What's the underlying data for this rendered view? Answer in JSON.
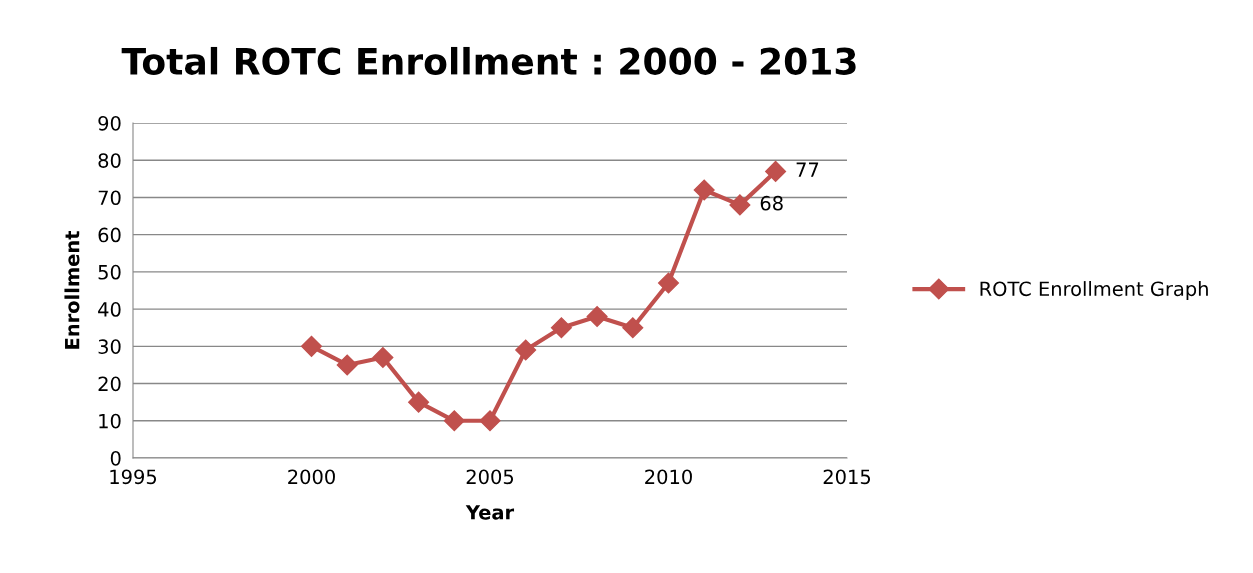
{
  "chart_data": {
    "type": "line",
    "title": "Total ROTC Enrollment : 2000 - 2013",
    "xlabel": "Year",
    "ylabel": "Enrollment",
    "x": [
      2000,
      2001,
      2002,
      2003,
      2004,
      2005,
      2006,
      2007,
      2008,
      2009,
      2010,
      2011,
      2012,
      2013
    ],
    "series": [
      {
        "name": "ROTC Enrollment Graph",
        "color": "#c0504d",
        "values": [
          30,
          25,
          27,
          15,
          10,
          10,
          29,
          35,
          38,
          35,
          47,
          72,
          68,
          77
        ],
        "value_labels": [
          null,
          null,
          null,
          null,
          null,
          null,
          null,
          null,
          null,
          null,
          null,
          null,
          "68",
          "77"
        ]
      }
    ],
    "xlim": [
      1995,
      2015
    ],
    "xticks": [
      1995,
      2000,
      2005,
      2010,
      2015
    ],
    "ylim": [
      0,
      90
    ],
    "yticks": [
      0,
      10,
      20,
      30,
      40,
      50,
      60,
      70,
      80,
      90
    ],
    "grid": "y",
    "legend": "right",
    "marker": "diamond",
    "line_style": "solid"
  }
}
